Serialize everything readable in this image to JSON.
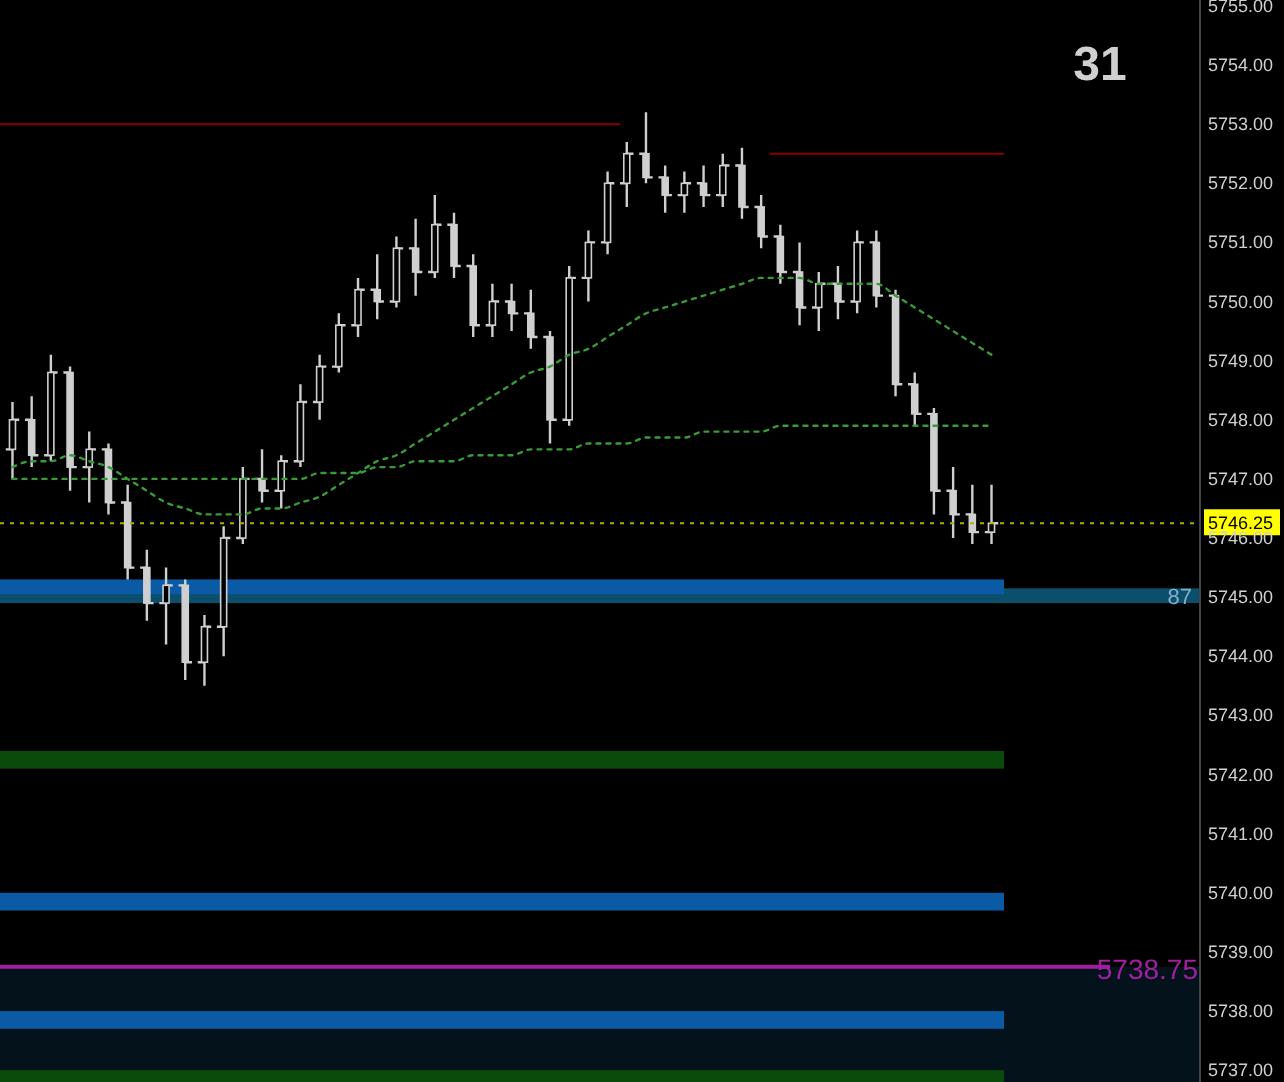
{
  "chart_data": {
    "type": "candlestick",
    "categories": [
      null,
      null,
      null,
      null,
      null,
      null,
      null,
      null,
      null,
      null,
      null,
      null,
      null,
      null,
      null,
      null,
      null,
      null,
      null,
      null,
      null,
      null,
      null,
      null,
      null,
      null,
      null,
      null,
      null,
      null,
      null,
      null,
      null,
      null,
      null,
      null,
      null,
      null,
      null,
      null,
      null,
      null,
      null,
      null,
      null,
      null,
      null,
      null,
      null,
      null,
      null,
      null
    ],
    "ohlc": [
      [
        5747.5,
        5748.3,
        5747.0,
        5748.0
      ],
      [
        5748.0,
        5748.4,
        5747.2,
        5747.4
      ],
      [
        5747.4,
        5749.1,
        5747.3,
        5748.8
      ],
      [
        5748.8,
        5748.9,
        5746.8,
        5747.2
      ],
      [
        5747.2,
        5747.8,
        5746.6,
        5747.5
      ],
      [
        5747.5,
        5747.6,
        5746.4,
        5746.6
      ],
      [
        5746.6,
        5746.9,
        5745.3,
        5745.5
      ],
      [
        5745.5,
        5745.8,
        5744.6,
        5744.9
      ],
      [
        5744.9,
        5745.5,
        5744.2,
        5745.2
      ],
      [
        5745.2,
        5745.3,
        5743.6,
        5743.9
      ],
      [
        5743.9,
        5744.7,
        5743.5,
        5744.5
      ],
      [
        5744.5,
        5746.2,
        5744.0,
        5746.0
      ],
      [
        5746.0,
        5747.2,
        5745.9,
        5747.0
      ],
      [
        5747.0,
        5747.5,
        5746.6,
        5746.8
      ],
      [
        5746.8,
        5747.4,
        5746.5,
        5747.3
      ],
      [
        5747.3,
        5748.6,
        5747.2,
        5748.3
      ],
      [
        5748.3,
        5749.1,
        5748.0,
        5748.9
      ],
      [
        5748.9,
        5749.8,
        5748.8,
        5749.6
      ],
      [
        5749.6,
        5750.4,
        5749.4,
        5750.2
      ],
      [
        5750.2,
        5750.8,
        5749.7,
        5750.0
      ],
      [
        5750.0,
        5751.1,
        5749.9,
        5750.9
      ],
      [
        5750.9,
        5751.4,
        5750.1,
        5750.5
      ],
      [
        5750.5,
        5751.8,
        5750.4,
        5751.3
      ],
      [
        5751.3,
        5751.5,
        5750.4,
        5750.6
      ],
      [
        5750.6,
        5750.8,
        5749.4,
        5749.6
      ],
      [
        5749.6,
        5750.3,
        5749.4,
        5750.0
      ],
      [
        5750.0,
        5750.3,
        5749.5,
        5749.8
      ],
      [
        5749.8,
        5750.2,
        5749.2,
        5749.4
      ],
      [
        5749.4,
        5749.5,
        5747.6,
        5748.0
      ],
      [
        5748.0,
        5750.6,
        5747.9,
        5750.4
      ],
      [
        5750.4,
        5751.2,
        5750.0,
        5751.0
      ],
      [
        5751.0,
        5752.2,
        5750.8,
        5752.0
      ],
      [
        5752.0,
        5752.7,
        5751.6,
        5752.5
      ],
      [
        5752.5,
        5753.2,
        5752.0,
        5752.1
      ],
      [
        5752.1,
        5752.3,
        5751.5,
        5751.8
      ],
      [
        5751.8,
        5752.2,
        5751.5,
        5752.0
      ],
      [
        5752.0,
        5752.3,
        5751.6,
        5751.8
      ],
      [
        5751.8,
        5752.5,
        5751.6,
        5752.3
      ],
      [
        5752.3,
        5752.6,
        5751.4,
        5751.6
      ],
      [
        5751.6,
        5751.8,
        5750.9,
        5751.1
      ],
      [
        5751.1,
        5751.3,
        5750.3,
        5750.5
      ],
      [
        5750.5,
        5751.0,
        5749.6,
        5749.9
      ],
      [
        5749.9,
        5750.5,
        5749.5,
        5750.3
      ],
      [
        5750.3,
        5750.6,
        5749.7,
        5750.0
      ],
      [
        5750.0,
        5751.2,
        5749.8,
        5751.0
      ],
      [
        5751.0,
        5751.2,
        5749.9,
        5750.1
      ],
      [
        5750.1,
        5750.2,
        5748.4,
        5748.6
      ],
      [
        5748.6,
        5748.8,
        5747.9,
        5748.1
      ],
      [
        5748.1,
        5748.2,
        5746.4,
        5746.8
      ],
      [
        5746.8,
        5747.2,
        5746.0,
        5746.4
      ],
      [
        5746.4,
        5746.9,
        5745.9,
        5746.1
      ],
      [
        5746.1,
        5746.9,
        5745.9,
        5746.25
      ]
    ],
    "series": [
      {
        "type": "line",
        "color": "#3a9a3a",
        "line_style": "dotted",
        "marker": "none",
        "values": [
          5747.2,
          5747.3,
          5747.3,
          5747.4,
          5747.3,
          5747.2,
          5747.0,
          5746.8,
          5746.6,
          5746.5,
          5746.4,
          5746.4,
          5746.4,
          5746.5,
          5746.5,
          5746.6,
          5746.7,
          5746.9,
          5747.1,
          5747.3,
          5747.4,
          5747.6,
          5747.8,
          5748.0,
          5748.2,
          5748.4,
          5748.6,
          5748.8,
          5748.9,
          5749.1,
          5749.2,
          5749.4,
          5749.6,
          5749.8,
          5749.9,
          5750.0,
          5750.1,
          5750.2,
          5750.3,
          5750.4,
          5750.4,
          5750.4,
          5750.3,
          5750.3,
          5750.3,
          5750.3,
          5750.1,
          5749.9,
          5749.7,
          5749.5,
          5749.3,
          5749.1
        ]
      },
      {
        "type": "line",
        "color": "#3a9a3a",
        "line_style": "dotted",
        "marker": "none",
        "values": [
          5747.0,
          5747.0,
          5747.0,
          5747.0,
          5747.0,
          5747.0,
          5747.0,
          5747.0,
          5747.0,
          5747.0,
          5747.0,
          5747.0,
          5747.0,
          5747.0,
          5747.0,
          5747.0,
          5747.1,
          5747.1,
          5747.1,
          5747.2,
          5747.2,
          5747.3,
          5747.3,
          5747.3,
          5747.4,
          5747.4,
          5747.4,
          5747.5,
          5747.5,
          5747.5,
          5747.6,
          5747.6,
          5747.6,
          5747.7,
          5747.7,
          5747.7,
          5747.8,
          5747.8,
          5747.8,
          5747.8,
          5747.9,
          5747.9,
          5747.9,
          5747.9,
          5747.9,
          5747.9,
          5747.9,
          5747.9,
          5747.9,
          5747.9,
          5747.9,
          5747.9
        ]
      }
    ],
    "ylim": [
      5736.8,
      5755.1
    ],
    "yticks": [
      {
        "value": 5737,
        "label": "5737.00"
      },
      {
        "value": 5738,
        "label": "5738.00"
      },
      {
        "value": 5739,
        "label": "5739.00"
      },
      {
        "value": 5740,
        "label": "5740.00"
      },
      {
        "value": 5741,
        "label": "5741.00"
      },
      {
        "value": 5742,
        "label": "5742.00"
      },
      {
        "value": 5743,
        "label": "5743.00"
      },
      {
        "value": 5744,
        "label": "5744.00"
      },
      {
        "value": 5745,
        "label": "5745.00"
      },
      {
        "value": 5746,
        "label": "5746.00"
      },
      {
        "value": 5747,
        "label": "5747.00"
      },
      {
        "value": 5748,
        "label": "5748.00"
      },
      {
        "value": 5749,
        "label": "5749.00"
      },
      {
        "value": 5750,
        "label": "5750.00"
      },
      {
        "value": 5751,
        "label": "5751.00"
      },
      {
        "value": 5752,
        "label": "5752.00"
      },
      {
        "value": 5753,
        "label": "5753.00"
      },
      {
        "value": 5754,
        "label": "5754.00"
      },
      {
        "value": 5755,
        "label": "5755.00"
      }
    ],
    "tick_labels": "y",
    "grid": false,
    "bands": [
      {
        "axis": "y",
        "from": 5736.8,
        "to": 5738.75,
        "color": "#04121c"
      },
      {
        "axis": "y",
        "from": 5742.1,
        "to": 5742.4,
        "color": "#0a4a0a"
      },
      {
        "axis": "y",
        "from": 5739.7,
        "to": 5740.0,
        "color": "#0a5aa6"
      },
      {
        "axis": "y",
        "from": 5737.7,
        "to": 5738.0,
        "color": "#0a5aa6"
      },
      {
        "axis": "y",
        "from": 5736.8,
        "to": 5737.0,
        "color": "#0a4a0a"
      },
      {
        "axis": "y",
        "from": 5744.9,
        "to": 5745.15,
        "color": "#0b4f6c",
        "label": "87"
      },
      {
        "axis": "y",
        "from": 5745.05,
        "to": 5745.3,
        "color": "#0a5aa6"
      }
    ],
    "ref_lines": [
      {
        "axis": "y",
        "value": 5753.0,
        "color": "#8b0000",
        "line_style": "solid"
      },
      {
        "axis": "y",
        "value": 5752.5,
        "color": "#8b0000",
        "line_style": "solid"
      },
      {
        "axis": "y",
        "value": 5738.75,
        "color": "#a020a0",
        "line_style": "solid",
        "label": "5738.75"
      },
      {
        "axis": "y",
        "value": 5746.25,
        "color": "#b0b000",
        "line_style": "dotted",
        "label": "5746.25"
      }
    ],
    "annotations": [
      "31"
    ]
  }
}
